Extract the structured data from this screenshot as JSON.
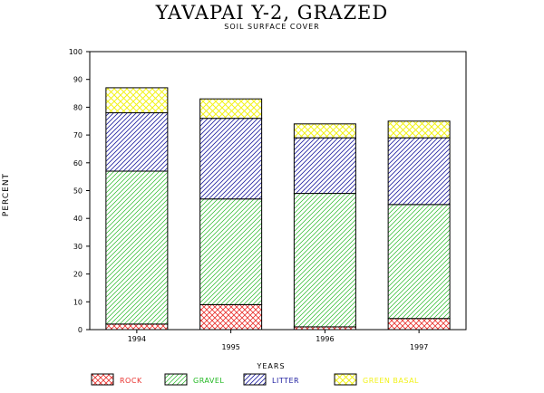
{
  "chart_data": {
    "type": "bar",
    "stacked": true,
    "title": "YAVAPAI Y-2, GRAZED",
    "subtitle": "SOIL SURFACE COVER",
    "xlabel": "YEARS",
    "ylabel": "PERCENT",
    "ylim": [
      0,
      100
    ],
    "yticks": [
      0,
      10,
      20,
      30,
      40,
      50,
      60,
      70,
      80,
      90,
      100
    ],
    "categories": [
      "1994",
      "1995",
      "1996",
      "1997"
    ],
    "series": [
      {
        "name": "ROCK",
        "values": [
          2,
          9,
          1,
          4
        ],
        "color": "#e8302c",
        "pattern": "crosshatch"
      },
      {
        "name": "GRAVEL",
        "values": [
          55,
          38,
          48,
          41
        ],
        "color": "#22b822",
        "pattern": "diagonal"
      },
      {
        "name": "LITTER",
        "values": [
          21,
          29,
          20,
          24
        ],
        "color": "#1e1ea0",
        "pattern": "diagonal"
      },
      {
        "name": "GREEN BASAL",
        "values": [
          9,
          7,
          5,
          6
        ],
        "color": "#f2f21a",
        "pattern": "crosshatch"
      }
    ],
    "legend_position": "bottom"
  }
}
